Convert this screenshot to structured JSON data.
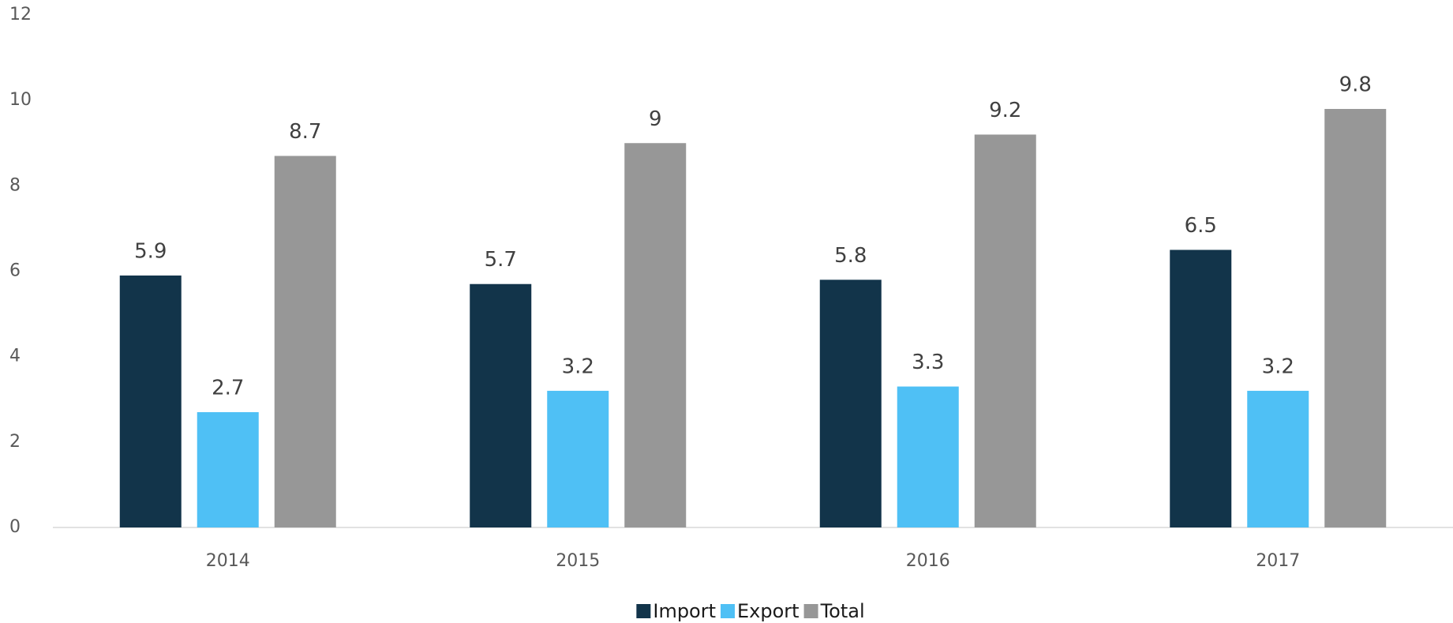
{
  "chart_data": {
    "type": "bar",
    "categories": [
      "2014",
      "2015",
      "2016",
      "2017"
    ],
    "series": [
      {
        "name": "Import",
        "color": "#12344a",
        "values": [
          5.9,
          5.7,
          5.8,
          6.5
        ]
      },
      {
        "name": "Export",
        "color": "#4fc0f5",
        "values": [
          2.7,
          3.2,
          3.3,
          3.2
        ]
      },
      {
        "name": "Total",
        "color": "#979797",
        "values": [
          8.7,
          9,
          9.2,
          9.8
        ]
      }
    ],
    "ylim": [
      0,
      12
    ],
    "yticks": [
      0,
      2,
      4,
      6,
      8,
      10,
      12
    ],
    "grid": false,
    "legend": "bottom"
  }
}
